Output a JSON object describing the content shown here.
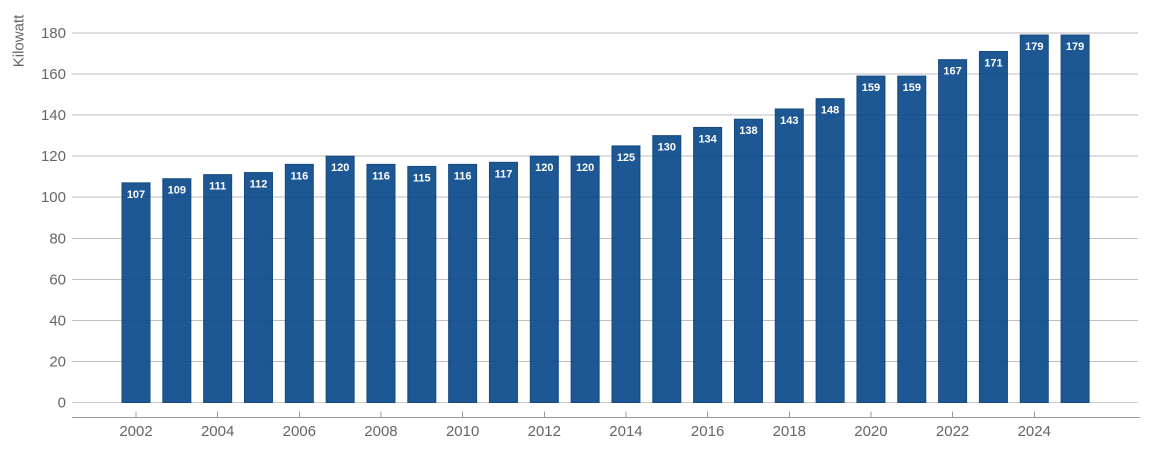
{
  "chart_data": {
    "type": "bar",
    "ylabel": "Kilowatt",
    "categories": [
      "2002",
      "2003",
      "2004",
      "2005",
      "2006",
      "2007",
      "2008",
      "2009",
      "2010",
      "2011",
      "2012",
      "2013",
      "2014",
      "2015",
      "2016",
      "2017",
      "2018",
      "2019",
      "2020",
      "2021",
      "2022",
      "2023",
      "2024",
      "2025"
    ],
    "values": [
      107,
      109,
      111,
      112,
      116,
      120,
      116,
      115,
      116,
      117,
      120,
      120,
      125,
      130,
      134,
      138,
      143,
      148,
      159,
      159,
      167,
      171,
      179,
      179
    ],
    "ylim": [
      0,
      180
    ],
    "yticks": [
      0,
      20,
      40,
      60,
      80,
      100,
      120,
      140,
      160,
      180
    ],
    "xtick_labels": [
      "2002",
      "2004",
      "2006",
      "2008",
      "2010",
      "2012",
      "2014",
      "2016",
      "2018",
      "2020",
      "2022",
      "2024"
    ],
    "grid": "horizontal",
    "legend": "none",
    "value_label_position": "inside-top",
    "colors": {
      "bar_fill": "#1d5794",
      "bar_border": "#164a80",
      "gridline": "#cccccc",
      "axis_line": "#999999",
      "axis_text": "#666666",
      "value_label_text": "#ffffff",
      "background": "#ffffff"
    }
  }
}
